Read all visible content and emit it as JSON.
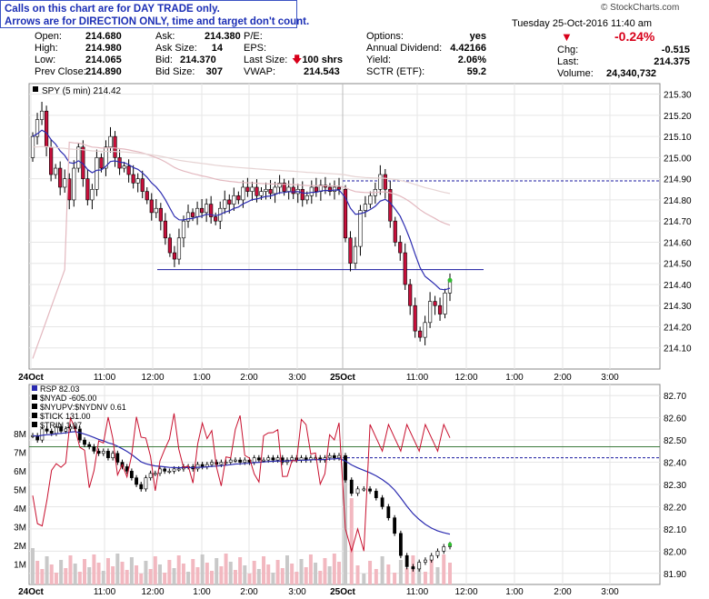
{
  "notice": {
    "line1": "Calls on this chart are for DAY TRADE only.",
    "line2": "Arrows are for DIRECTION ONLY, time and target don't count."
  },
  "credit": "© StockCharts.com",
  "quote": {
    "col1": [
      {
        "label": "Open:",
        "value": "214.680"
      },
      {
        "label": "High:",
        "value": "214.980"
      },
      {
        "label": "Low:",
        "value": "214.065"
      },
      {
        "label": "Prev Close:",
        "value": "214.890"
      }
    ],
    "col2": [
      {
        "label": "Ask:",
        "value": "214.380"
      },
      {
        "label": "Ask Size:",
        "value": "14"
      },
      {
        "label": "Bid:",
        "value": "214.370"
      },
      {
        "label": "Bid Size:",
        "value": "307"
      }
    ],
    "col3": [
      {
        "label": "P/E:",
        "value": ""
      },
      {
        "label": "EPS:",
        "value": ""
      },
      {
        "label": "Last Size:",
        "value": "100 shrs"
      },
      {
        "label": "VWAP:",
        "value": "214.543"
      }
    ],
    "col4": [
      {
        "label": "Options:",
        "value": "yes"
      },
      {
        "label": "Annual Dividend:",
        "value": "4.42166"
      },
      {
        "label": "Yield:",
        "value": "2.06%"
      },
      {
        "label": "SCTR (ETF):",
        "value": "59.2"
      }
    ],
    "date_line": "Tuesday 25-Oct-2016 11:40 am",
    "change_pct": "-0.24%",
    "col5": [
      {
        "label": "Chg:",
        "value": "-0.515"
      },
      {
        "label": "Last:",
        "value": "214.375"
      },
      {
        "label": "Volume:",
        "value": "24,340,732"
      }
    ]
  },
  "chart_data": [
    {
      "type": "candlestick",
      "legend": "SPY (5 min) 214.42",
      "ylim": [
        214.0,
        215.35
      ],
      "yticks": [
        "215.30",
        "215.20",
        "215.10",
        "215.00",
        "214.90",
        "214.80",
        "214.70",
        "214.60",
        "214.50",
        "214.40",
        "214.30",
        "214.20",
        "214.10"
      ],
      "xticks": [
        "24Oct",
        "11:00",
        "12:00",
        "1:00",
        "2:00",
        "3:00",
        "25Oct",
        "11:00",
        "12:00",
        "1:00",
        "2:00",
        "3:00"
      ],
      "support_line": 214.47,
      "prev_close_line": 214.89,
      "day1_closes": [
        215.1,
        215.18,
        215.22,
        215.05,
        214.92,
        214.95,
        214.86,
        214.9,
        214.8,
        214.95,
        215.05,
        214.9,
        214.8,
        214.85,
        215.0,
        214.95,
        215.05,
        215.1,
        215.0,
        214.95,
        214.96,
        214.92,
        214.88,
        214.9,
        214.84,
        214.8,
        214.74,
        214.76,
        214.7,
        214.62,
        214.55,
        214.52,
        214.62,
        214.7,
        214.74,
        214.72,
        214.76,
        214.74,
        214.78,
        214.72,
        214.7,
        214.76,
        214.8,
        214.78,
        214.82,
        214.8,
        214.86,
        214.84,
        214.86,
        214.82,
        214.84,
        214.85,
        214.83,
        214.86,
        214.88,
        214.84,
        214.86,
        214.83,
        214.85,
        214.8,
        214.82,
        214.86,
        214.84,
        214.87,
        214.86,
        214.84,
        214.86,
        214.85
      ],
      "day2_closes": [
        214.62,
        214.5,
        214.58,
        214.75,
        214.78,
        214.82,
        214.85,
        214.92,
        214.85,
        214.7,
        214.6,
        214.55,
        214.4,
        214.3,
        214.18,
        214.15,
        214.22,
        214.32,
        214.3,
        214.26,
        214.36,
        214.42
      ],
      "highlight_point": 214.42
    },
    {
      "type": "line",
      "legend_entries": [
        "RSP 82.03",
        "$NYAD -605.00",
        "$NYUPV:$NYDNV 0.61",
        "$TICK 131.00",
        "$TRIN 1.07"
      ],
      "ylim": [
        81.85,
        82.75
      ],
      "yticks": [
        "82.70",
        "82.60",
        "82.50",
        "82.40",
        "82.30",
        "82.20",
        "82.10",
        "82.00",
        "81.90"
      ],
      "left_ticks": [
        "8M",
        "7M",
        "6M",
        "5M",
        "4M",
        "3M",
        "2M",
        "1M"
      ],
      "xticks": [
        "24Oct",
        "11:00",
        "12:00",
        "1:00",
        "2:00",
        "3:00",
        "25Oct",
        "11:00",
        "12:00",
        "1:00",
        "2:00",
        "3:00"
      ],
      "hline_green": 82.47,
      "hline_blue": 82.42,
      "rsp_day1": [
        82.52,
        82.5,
        82.55,
        82.54,
        82.53,
        82.56,
        82.54,
        82.55,
        82.56,
        82.55,
        82.5,
        82.48,
        82.47,
        82.45,
        82.44,
        82.45,
        82.42,
        82.44,
        82.4,
        82.38,
        82.36,
        82.33,
        82.3,
        82.28,
        82.33,
        82.35,
        82.35,
        82.37,
        82.36,
        82.36,
        82.37,
        82.37,
        82.38,
        82.38,
        82.37,
        82.39,
        82.38,
        82.39,
        82.4,
        82.39,
        82.4,
        82.4,
        82.41,
        82.41,
        82.4,
        82.41,
        82.4,
        82.42,
        82.41,
        82.41,
        82.42,
        82.41,
        82.42,
        82.4,
        82.41,
        82.42,
        82.41,
        82.42,
        82.41,
        82.42,
        82.42,
        82.41,
        82.42,
        82.43,
        82.42,
        82.43
      ],
      "rsp_day2": [
        82.32,
        82.26,
        82.28,
        82.28,
        82.27,
        82.24,
        82.2,
        82.15,
        82.08,
        81.98,
        81.93,
        81.92,
        81.95,
        81.96,
        81.98,
        82.0,
        82.02,
        82.03
      ]
    }
  ]
}
